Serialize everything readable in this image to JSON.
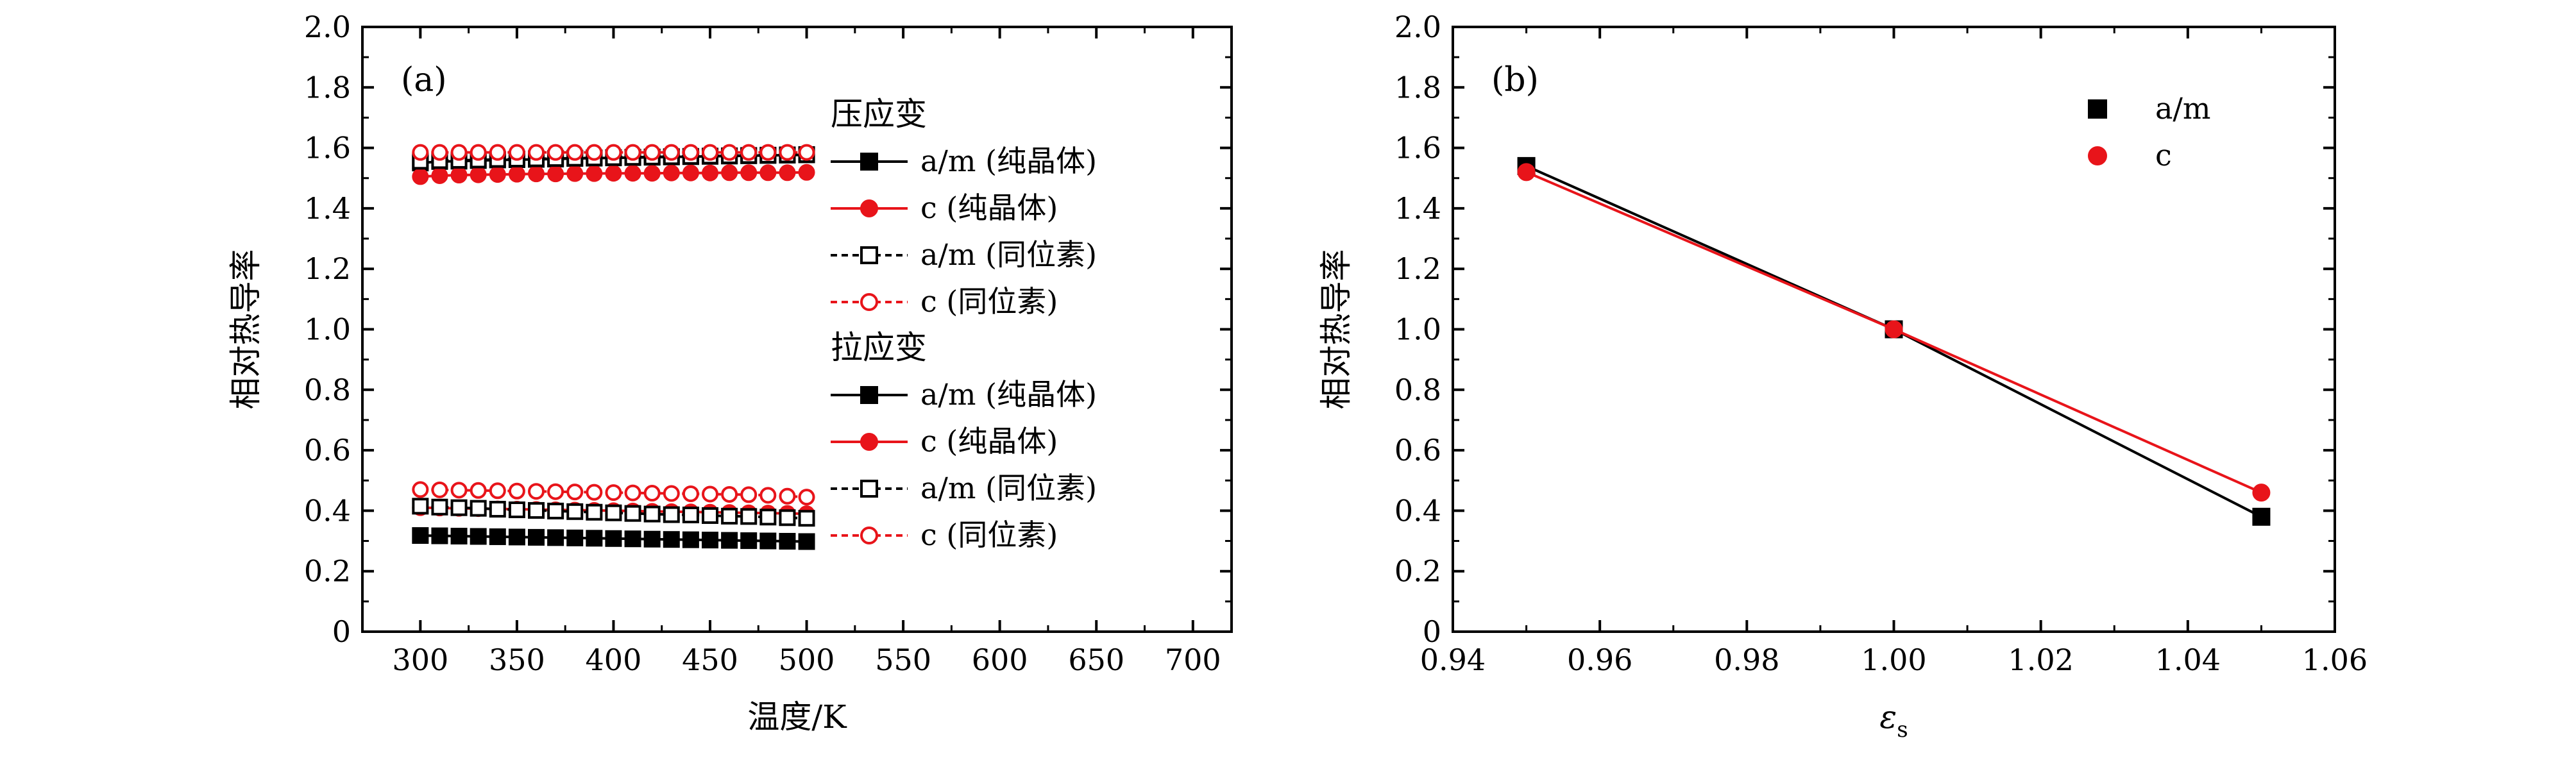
{
  "chart_data": [
    {
      "type": "line",
      "panel_label": "(a)",
      "xlabel": "温度/K",
      "ylabel": "相对热导率",
      "xlim": [
        270,
        720
      ],
      "ylim": [
        0,
        2.0
      ],
      "xticks": [
        300,
        350,
        400,
        450,
        500,
        550,
        600,
        650,
        700
      ],
      "yticks": [
        0,
        0.2,
        0.4,
        0.6,
        0.8,
        1.0,
        1.2,
        1.4,
        1.6,
        1.8,
        2.0
      ],
      "ytick_labels": [
        "0",
        "0.2",
        "0.4",
        "0.6",
        "0.8",
        "1.0",
        "1.2",
        "1.4",
        "1.6",
        "1.8",
        "2.0"
      ],
      "x": [
        300,
        310,
        320,
        330,
        340,
        350,
        360,
        370,
        380,
        390,
        400,
        410,
        420,
        430,
        440,
        450,
        460,
        470,
        480,
        490,
        500
      ],
      "legend_groups": [
        {
          "title": "压应变",
          "series_indices": [
            0,
            1,
            2,
            3
          ]
        },
        {
          "title": "拉应变",
          "series_indices": [
            4,
            5,
            6,
            7
          ]
        }
      ],
      "series": [
        {
          "name": "a/m (纯晶体)",
          "color": "#000000",
          "marker": "square",
          "filled": true,
          "dash": "solid",
          "values": [
            1.55,
            1.555,
            1.556,
            1.558,
            1.56,
            1.561,
            1.562,
            1.563,
            1.565,
            1.566,
            1.567,
            1.568,
            1.569,
            1.57,
            1.571,
            1.572,
            1.573,
            1.574,
            1.575,
            1.576,
            1.577
          ]
        },
        {
          "name": "c (纯晶体)",
          "color": "#e8141a",
          "marker": "circle",
          "filled": true,
          "dash": "solid",
          "values": [
            1.505,
            1.508,
            1.51,
            1.511,
            1.512,
            1.513,
            1.514,
            1.514,
            1.515,
            1.515,
            1.516,
            1.516,
            1.516,
            1.517,
            1.517,
            1.517,
            1.518,
            1.518,
            1.518,
            1.518,
            1.519
          ]
        },
        {
          "name": "a/m (同位素)",
          "color": "#000000",
          "marker": "square",
          "filled": false,
          "dash": "dash",
          "values": [
            1.556,
            1.558,
            1.559,
            1.56,
            1.562,
            1.563,
            1.564,
            1.565,
            1.566,
            1.567,
            1.568,
            1.569,
            1.57,
            1.571,
            1.572,
            1.573,
            1.574,
            1.575,
            1.576,
            1.577,
            1.578
          ]
        },
        {
          "name": "c (同位素)",
          "color": "#e8141a",
          "marker": "circle",
          "filled": false,
          "dash": "dash",
          "values": [
            1.585,
            1.585,
            1.585,
            1.585,
            1.585,
            1.585,
            1.585,
            1.585,
            1.585,
            1.585,
            1.585,
            1.585,
            1.585,
            1.585,
            1.585,
            1.585,
            1.585,
            1.585,
            1.585,
            1.585,
            1.585
          ]
        },
        {
          "name": "a/m (纯晶体)",
          "color": "#000000",
          "marker": "square",
          "filled": true,
          "dash": "solid",
          "values": [
            0.318,
            0.317,
            0.316,
            0.315,
            0.314,
            0.313,
            0.312,
            0.311,
            0.31,
            0.309,
            0.308,
            0.307,
            0.306,
            0.305,
            0.304,
            0.303,
            0.302,
            0.301,
            0.3,
            0.299,
            0.298
          ]
        },
        {
          "name": "c (纯晶体)",
          "color": "#e8141a",
          "marker": "circle",
          "filled": true,
          "dash": "solid",
          "values": [
            0.41,
            0.409,
            0.408,
            0.407,
            0.406,
            0.405,
            0.404,
            0.403,
            0.402,
            0.401,
            0.4,
            0.399,
            0.398,
            0.397,
            0.396,
            0.395,
            0.394,
            0.393,
            0.392,
            0.391,
            0.39
          ]
        },
        {
          "name": "a/m (同位素)",
          "color": "#000000",
          "marker": "square",
          "filled": false,
          "dash": "dash",
          "values": [
            0.415,
            0.412,
            0.41,
            0.408,
            0.405,
            0.403,
            0.401,
            0.399,
            0.397,
            0.395,
            0.393,
            0.391,
            0.389,
            0.387,
            0.386,
            0.384,
            0.382,
            0.381,
            0.379,
            0.377,
            0.375
          ]
        },
        {
          "name": "c (同位素)",
          "color": "#e8141a",
          "marker": "circle",
          "filled": false,
          "dash": "dash",
          "values": [
            0.47,
            0.469,
            0.468,
            0.467,
            0.466,
            0.465,
            0.464,
            0.463,
            0.462,
            0.461,
            0.46,
            0.459,
            0.458,
            0.457,
            0.456,
            0.455,
            0.454,
            0.453,
            0.451,
            0.448,
            0.445
          ]
        }
      ]
    },
    {
      "type": "line",
      "panel_label": "(b)",
      "xlabel": "εs",
      "xlabel_main": "ε",
      "xlabel_sub": "s",
      "ylabel": "相对热导率",
      "xlim": [
        0.94,
        1.06
      ],
      "ylim": [
        0,
        2.0
      ],
      "xticks": [
        0.94,
        0.96,
        0.98,
        1.0,
        1.02,
        1.04,
        1.06
      ],
      "xtick_labels": [
        "0.94",
        "0.96",
        "0.98",
        "1.00",
        "1.02",
        "1.04",
        "1.06"
      ],
      "yticks": [
        0,
        0.2,
        0.4,
        0.6,
        0.8,
        1.0,
        1.2,
        1.4,
        1.6,
        1.8,
        2.0
      ],
      "ytick_labels": [
        "0",
        "0.2",
        "0.4",
        "0.6",
        "0.8",
        "1.0",
        "1.2",
        "1.4",
        "1.6",
        "1.8",
        "2.0"
      ],
      "x": [
        0.95,
        1.0,
        1.05
      ],
      "legend_position": "top-right",
      "series": [
        {
          "name": "a/m",
          "color": "#000000",
          "marker": "square",
          "filled": true,
          "dash": "solid",
          "values": [
            1.54,
            1.0,
            0.38
          ]
        },
        {
          "name": "c",
          "color": "#e8141a",
          "marker": "circle",
          "filled": true,
          "dash": "solid",
          "values": [
            1.52,
            1.0,
            0.46
          ]
        }
      ]
    }
  ]
}
